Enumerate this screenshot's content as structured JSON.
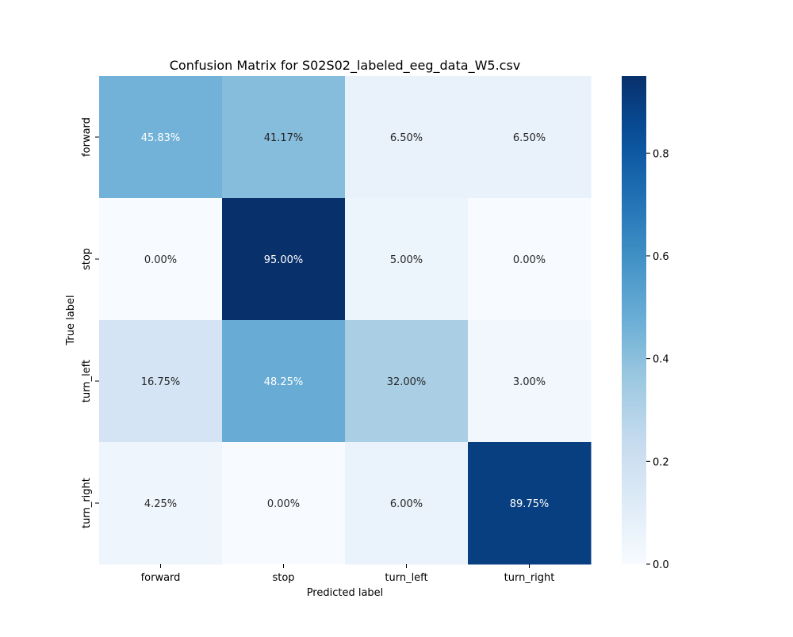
{
  "chart_data": {
    "type": "heatmap",
    "title": "Confusion Matrix for S02S02_labeled_eeg_data_W5.csv",
    "xlabel": "Predicted label",
    "ylabel": "True label",
    "x_categories": [
      "forward",
      "stop",
      "turn_left",
      "turn_right"
    ],
    "y_categories": [
      "forward",
      "stop",
      "turn_left",
      "turn_right"
    ],
    "values": [
      [
        0.4583,
        0.4117,
        0.065,
        0.065
      ],
      [
        0.0,
        0.95,
        0.05,
        0.0
      ],
      [
        0.1675,
        0.4825,
        0.32,
        0.03
      ],
      [
        0.0425,
        0.0,
        0.06,
        0.8975
      ]
    ],
    "annotations": [
      [
        "45.83%",
        "41.17%",
        "6.50%",
        "6.50%"
      ],
      [
        "0.00%",
        "95.00%",
        "5.00%",
        "0.00%"
      ],
      [
        "16.75%",
        "48.25%",
        "32.00%",
        "3.00%"
      ],
      [
        "4.25%",
        "0.00%",
        "6.00%",
        "89.75%"
      ]
    ],
    "colormap": "Blues",
    "colorbar": {
      "range": [
        0.0,
        0.95
      ],
      "ticks": [
        0.0,
        0.2,
        0.4,
        0.6,
        0.8
      ],
      "tick_labels": [
        "0.0",
        "0.2",
        "0.4",
        "0.6",
        "0.8"
      ]
    }
  }
}
